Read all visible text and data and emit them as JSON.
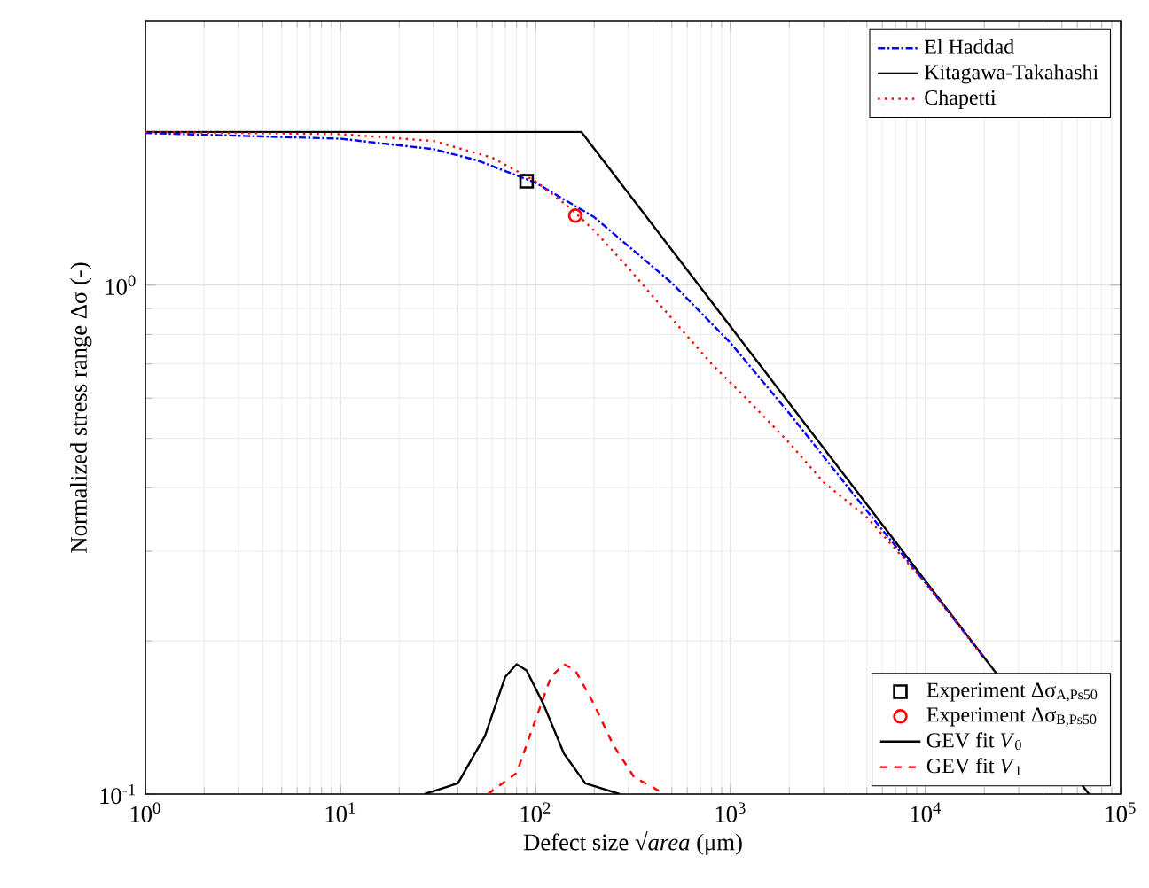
{
  "chart_data": {
    "type": "line",
    "xlabel": "Defect size √*area* (μm)",
    "ylabel": "Normalized stress range Δσ (-)",
    "log": "xy",
    "grid": true,
    "legend": "top right",
    "xlim": [
      1,
      100000
    ],
    "ylim": [
      0.1,
      3.3
    ],
    "xticks": [
      {
        "value": 1,
        "label": "10$^{0}$"
      },
      {
        "value": 10,
        "label": "10$^{1}$"
      },
      {
        "value": 100,
        "label": "10$^{2}$"
      },
      {
        "value": 1000,
        "label": "10$^{3}$"
      },
      {
        "value": 10000,
        "label": "10$^{4}$"
      },
      {
        "value": 100000,
        "label": "10$^{5}$"
      }
    ],
    "yticks": [
      {
        "value": 0.1,
        "label": "10$^{-1}$"
      },
      {
        "value": 1,
        "label": "10$^{0}$"
      }
    ],
    "series": [
      {
        "name": "El Haddad",
        "color": "#0000ff",
        "line_style": "dashdot",
        "marker": "none",
        "x": [
          1,
          10,
          30,
          50,
          100,
          200,
          500,
          1000,
          2000,
          5000,
          10000,
          20000
        ],
        "values": [
          1.99,
          1.94,
          1.85,
          1.76,
          1.59,
          1.36,
          1.01,
          0.77,
          0.56,
          0.36,
          0.26,
          0.185
        ]
      },
      {
        "name": "Kitagawa-Takahashi",
        "color": "#000000",
        "line_style": "solid",
        "marker": "none",
        "x": [
          1,
          172,
          10000,
          68800
        ],
        "values": [
          2.0,
          2.0,
          0.262,
          0.1
        ]
      },
      {
        "name": "Chapetti",
        "color": "#ff0000",
        "line_style": "dotted",
        "marker": "none",
        "x": [
          1,
          10,
          30,
          60,
          100,
          150,
          200,
          300,
          500,
          800,
          1200,
          2000,
          3000,
          5000,
          10000,
          20000
        ],
        "values": [
          2.0,
          1.98,
          1.92,
          1.78,
          1.6,
          1.42,
          1.28,
          1.08,
          0.86,
          0.7,
          0.6,
          0.49,
          0.41,
          0.35,
          0.26,
          0.185
        ]
      },
      {
        "name": "Experiment Δσ$_{A,Ps50}$",
        "type": "scatter",
        "color": "#000000",
        "marker": "square",
        "x": [
          90
        ],
        "values": [
          1.6
        ]
      },
      {
        "name": "Experiment Δσ$_{B,Ps50}$",
        "type": "scatter",
        "color": "#ff0000",
        "marker": "circle",
        "x": [
          160
        ],
        "values": [
          1.37
        ]
      },
      {
        "name": "GEV fit *V*$_{0}$",
        "color": "#000000",
        "line_style": "solid",
        "marker": "none",
        "x": [
          27,
          40,
          55,
          70,
          80,
          90,
          110,
          140,
          180,
          270
        ],
        "values": [
          0.1,
          0.105,
          0.13,
          0.17,
          0.18,
          0.175,
          0.15,
          0.12,
          0.105,
          0.1
        ]
      },
      {
        "name": "GEV fit *V*$_{1}$",
        "color": "#ff0000",
        "line_style": "dashed",
        "marker": "none",
        "x": [
          57,
          80,
          100,
          120,
          140,
          160,
          200,
          250,
          320,
          460
        ],
        "values": [
          0.1,
          0.11,
          0.14,
          0.17,
          0.18,
          0.175,
          0.15,
          0.125,
          0.108,
          0.1
        ]
      }
    ]
  }
}
